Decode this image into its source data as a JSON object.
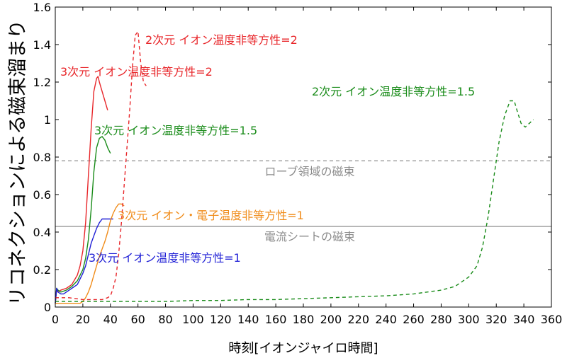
{
  "chart_data": {
    "type": "line",
    "xlabel": "時刻[イオンジャイロ時間]",
    "ylabel": "リコネクションによる磁束溜まり",
    "xlim": [
      0,
      360
    ],
    "ylim": [
      0,
      1.6
    ],
    "x_ticks": [
      "0",
      "20",
      "40",
      "60",
      "80",
      "100",
      "120",
      "140",
      "160",
      "180",
      "200",
      "220",
      "240",
      "260",
      "280",
      "300",
      "320",
      "340",
      "360"
    ],
    "y_ticks": [
      "0",
      "0.2",
      "0.4",
      "0.6",
      "0.8",
      "1",
      "1.2",
      "1.4",
      "1.6"
    ],
    "grid": false,
    "reference_lines": [
      {
        "label": "ローブ領域の磁束",
        "y": 0.78,
        "color": "#999999",
        "style": "dashed"
      },
      {
        "label": "電流シートの磁束",
        "y": 0.43,
        "color": "#999999",
        "style": "solid"
      }
    ],
    "series": [
      {
        "name": "3次元 イオン温度非等方性=2",
        "color": "#e8262a",
        "style": "solid",
        "x": [
          0,
          1,
          2,
          4,
          8,
          12,
          16,
          18,
          20,
          22,
          24,
          26,
          28,
          30,
          31,
          32,
          34,
          36,
          38
        ],
        "y": [
          0.02,
          0.09,
          0.08,
          0.09,
          0.1,
          0.12,
          0.17,
          0.22,
          0.3,
          0.45,
          0.7,
          0.95,
          1.15,
          1.22,
          1.23,
          1.2,
          1.15,
          1.1,
          1.05
        ]
      },
      {
        "name": "3次元 イオン温度非等方性=1.5",
        "color": "#1a8c1a",
        "style": "solid",
        "x": [
          0,
          1,
          2,
          4,
          8,
          12,
          16,
          20,
          22,
          24,
          26,
          28,
          30,
          32,
          34,
          36,
          38,
          40
        ],
        "y": [
          0.02,
          0.1,
          0.09,
          0.08,
          0.09,
          0.11,
          0.14,
          0.2,
          0.26,
          0.36,
          0.52,
          0.72,
          0.85,
          0.9,
          0.91,
          0.89,
          0.85,
          0.82
        ]
      },
      {
        "name": "3次元 イオン温度非等方性=1",
        "color": "#1f1fd6",
        "style": "solid",
        "x": [
          0,
          1,
          2,
          4,
          6,
          8,
          12,
          16,
          20,
          22,
          24,
          26,
          28,
          30,
          32,
          34,
          36,
          40,
          42
        ],
        "y": [
          0.02,
          0.1,
          0.08,
          0.07,
          0.07,
          0.08,
          0.1,
          0.12,
          0.18,
          0.22,
          0.28,
          0.34,
          0.38,
          0.42,
          0.45,
          0.47,
          0.47,
          0.47,
          0.47
        ]
      },
      {
        "name": "3次元 イオン・電子温度非等方性=1",
        "color": "#f08c1a",
        "style": "solid",
        "x": [
          0,
          2,
          6,
          10,
          14,
          18,
          20,
          22,
          24,
          26,
          28,
          30,
          32,
          34,
          36,
          38,
          40,
          42,
          44,
          46,
          48,
          50
        ],
        "y": [
          0.02,
          0.02,
          0.02,
          0.02,
          0.02,
          0.02,
          0.03,
          0.05,
          0.08,
          0.12,
          0.17,
          0.22,
          0.27,
          0.31,
          0.35,
          0.4,
          0.46,
          0.5,
          0.53,
          0.55,
          0.55,
          0.54
        ]
      },
      {
        "name": "2次元 イオン温度非等方性=2",
        "color": "#e8262a",
        "style": "dashed",
        "x": [
          0,
          10,
          20,
          26,
          30,
          34,
          38,
          40,
          42,
          44,
          46,
          48,
          50,
          52,
          54,
          56,
          58,
          60,
          62,
          64,
          66
        ],
        "y": [
          0.05,
          0.05,
          0.04,
          0.04,
          0.04,
          0.04,
          0.05,
          0.06,
          0.1,
          0.16,
          0.28,
          0.45,
          0.65,
          0.85,
          1.05,
          1.28,
          1.45,
          1.47,
          1.3,
          1.2,
          1.18
        ]
      },
      {
        "name": "2次元 イオン温度非等方性=1.5",
        "color": "#1a8c1a",
        "style": "dashed",
        "x": [
          0,
          20,
          40,
          60,
          80,
          100,
          120,
          140,
          160,
          180,
          200,
          220,
          240,
          260,
          280,
          290,
          300,
          306,
          310,
          314,
          318,
          322,
          326,
          330,
          333,
          335,
          338,
          341,
          344,
          347
        ],
        "y": [
          0.03,
          0.03,
          0.03,
          0.03,
          0.03,
          0.035,
          0.035,
          0.04,
          0.04,
          0.045,
          0.05,
          0.055,
          0.06,
          0.07,
          0.09,
          0.11,
          0.16,
          0.22,
          0.32,
          0.48,
          0.68,
          0.88,
          1.02,
          1.1,
          1.1,
          1.05,
          0.98,
          0.96,
          0.98,
          1.0
        ]
      }
    ],
    "annotations": [
      {
        "text": "2次元 イオン温度非等方性=2",
        "color": "#e8262a"
      },
      {
        "text": "3次元 イオン温度非等方性=2",
        "color": "#e8262a"
      },
      {
        "text": "2次元 イオン温度非等方性=1.5",
        "color": "#1a8c1a"
      },
      {
        "text": "3次元 イオン温度非等方性=1.5",
        "color": "#1a8c1a"
      },
      {
        "text": "3次元 イオン・電子温度非等方性=1",
        "color": "#f08c1a"
      },
      {
        "text": "3次元 イオン温度非等方性=1",
        "color": "#1f1fd6"
      }
    ]
  }
}
